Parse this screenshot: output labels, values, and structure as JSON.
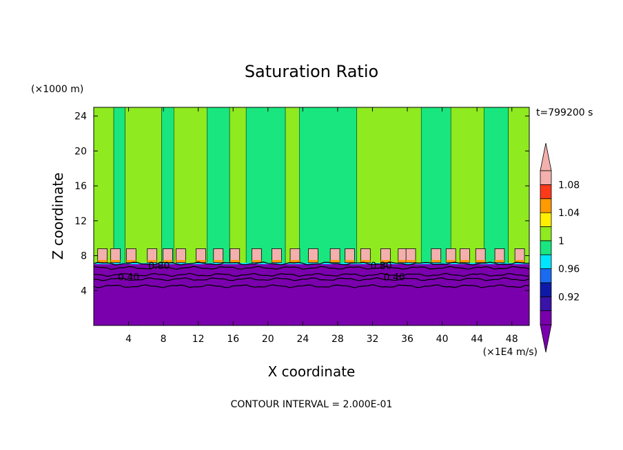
{
  "chart_data": {
    "type": "contour",
    "title": "Saturation Ratio",
    "xlabel": "X coordinate",
    "ylabel": "Z coordinate",
    "x_units": "(×1E4 m/s)",
    "y_units": "(×1000 m)",
    "xlim": [
      0,
      50
    ],
    "ylim": [
      0,
      25
    ],
    "x_ticks": [
      4,
      8,
      12,
      16,
      20,
      24,
      28,
      32,
      36,
      40,
      44,
      48
    ],
    "y_ticks": [
      4,
      8,
      12,
      16,
      20,
      24
    ],
    "time_label": "t=799200 s",
    "footer": "CONTOUR INTERVAL = 2.000E-01",
    "contour_labels": [
      {
        "text": "0.80",
        "x": 7.5,
        "z": 6.8
      },
      {
        "text": "0.40",
        "x": 4.0,
        "z": 5.5
      },
      {
        "text": "0.80",
        "x": 33.0,
        "z": 6.8
      },
      {
        "text": "0.40",
        "x": 34.5,
        "z": 5.5
      }
    ],
    "colorbar": {
      "levels": [
        0.92,
        0.96,
        1,
        1.04,
        1.08
      ],
      "bin_colors": [
        "#7a00ad",
        "#3a13a8",
        "#0d1aa8",
        "#1a6bf0",
        "#00e5ff",
        "#19e67f",
        "#8fea1f",
        "#ffef00",
        "#ff9a00",
        "#ff3a1a",
        "#f4b0ad"
      ],
      "extend": "both"
    },
    "field_colors": {
      "subsaturated_layer": "#7a00ad",
      "saturated_low": "#19e67f",
      "saturated_high": "#8fea1f",
      "supersaturated_caps": "#f4b0ad",
      "transition_line": "#00e5ff"
    },
    "tower_bands": [
      {
        "x0": 0.0,
        "x1": 2.3,
        "c": "high"
      },
      {
        "x0": 2.3,
        "x1": 3.6,
        "c": "low"
      },
      {
        "x0": 3.6,
        "x1": 7.8,
        "c": "high"
      },
      {
        "x0": 7.8,
        "x1": 9.2,
        "c": "low"
      },
      {
        "x0": 9.2,
        "x1": 13.0,
        "c": "high"
      },
      {
        "x0": 13.0,
        "x1": 15.6,
        "c": "low"
      },
      {
        "x0": 15.6,
        "x1": 17.5,
        "c": "high"
      },
      {
        "x0": 17.5,
        "x1": 22.0,
        "c": "low"
      },
      {
        "x0": 22.0,
        "x1": 23.6,
        "c": "high"
      },
      {
        "x0": 23.6,
        "x1": 30.2,
        "c": "low"
      },
      {
        "x0": 30.2,
        "x1": 37.6,
        "c": "high"
      },
      {
        "x0": 37.6,
        "x1": 41.0,
        "c": "low"
      },
      {
        "x0": 41.0,
        "x1": 44.8,
        "c": "high"
      },
      {
        "x0": 44.8,
        "x1": 47.6,
        "c": "low"
      },
      {
        "x0": 47.6,
        "x1": 50.0,
        "c": "high"
      }
    ],
    "caps": [
      1.0,
      2.5,
      4.3,
      6.7,
      8.5,
      10.0,
      12.3,
      14.3,
      16.2,
      18.7,
      21.0,
      23.1,
      25.2,
      27.7,
      29.4,
      31.2,
      33.5,
      35.5,
      36.4,
      39.3,
      41.0,
      42.6,
      44.4,
      46.6,
      48.9
    ],
    "contours_z": [
      7.1,
      6.6,
      5.8,
      5.3,
      4.5
    ]
  }
}
